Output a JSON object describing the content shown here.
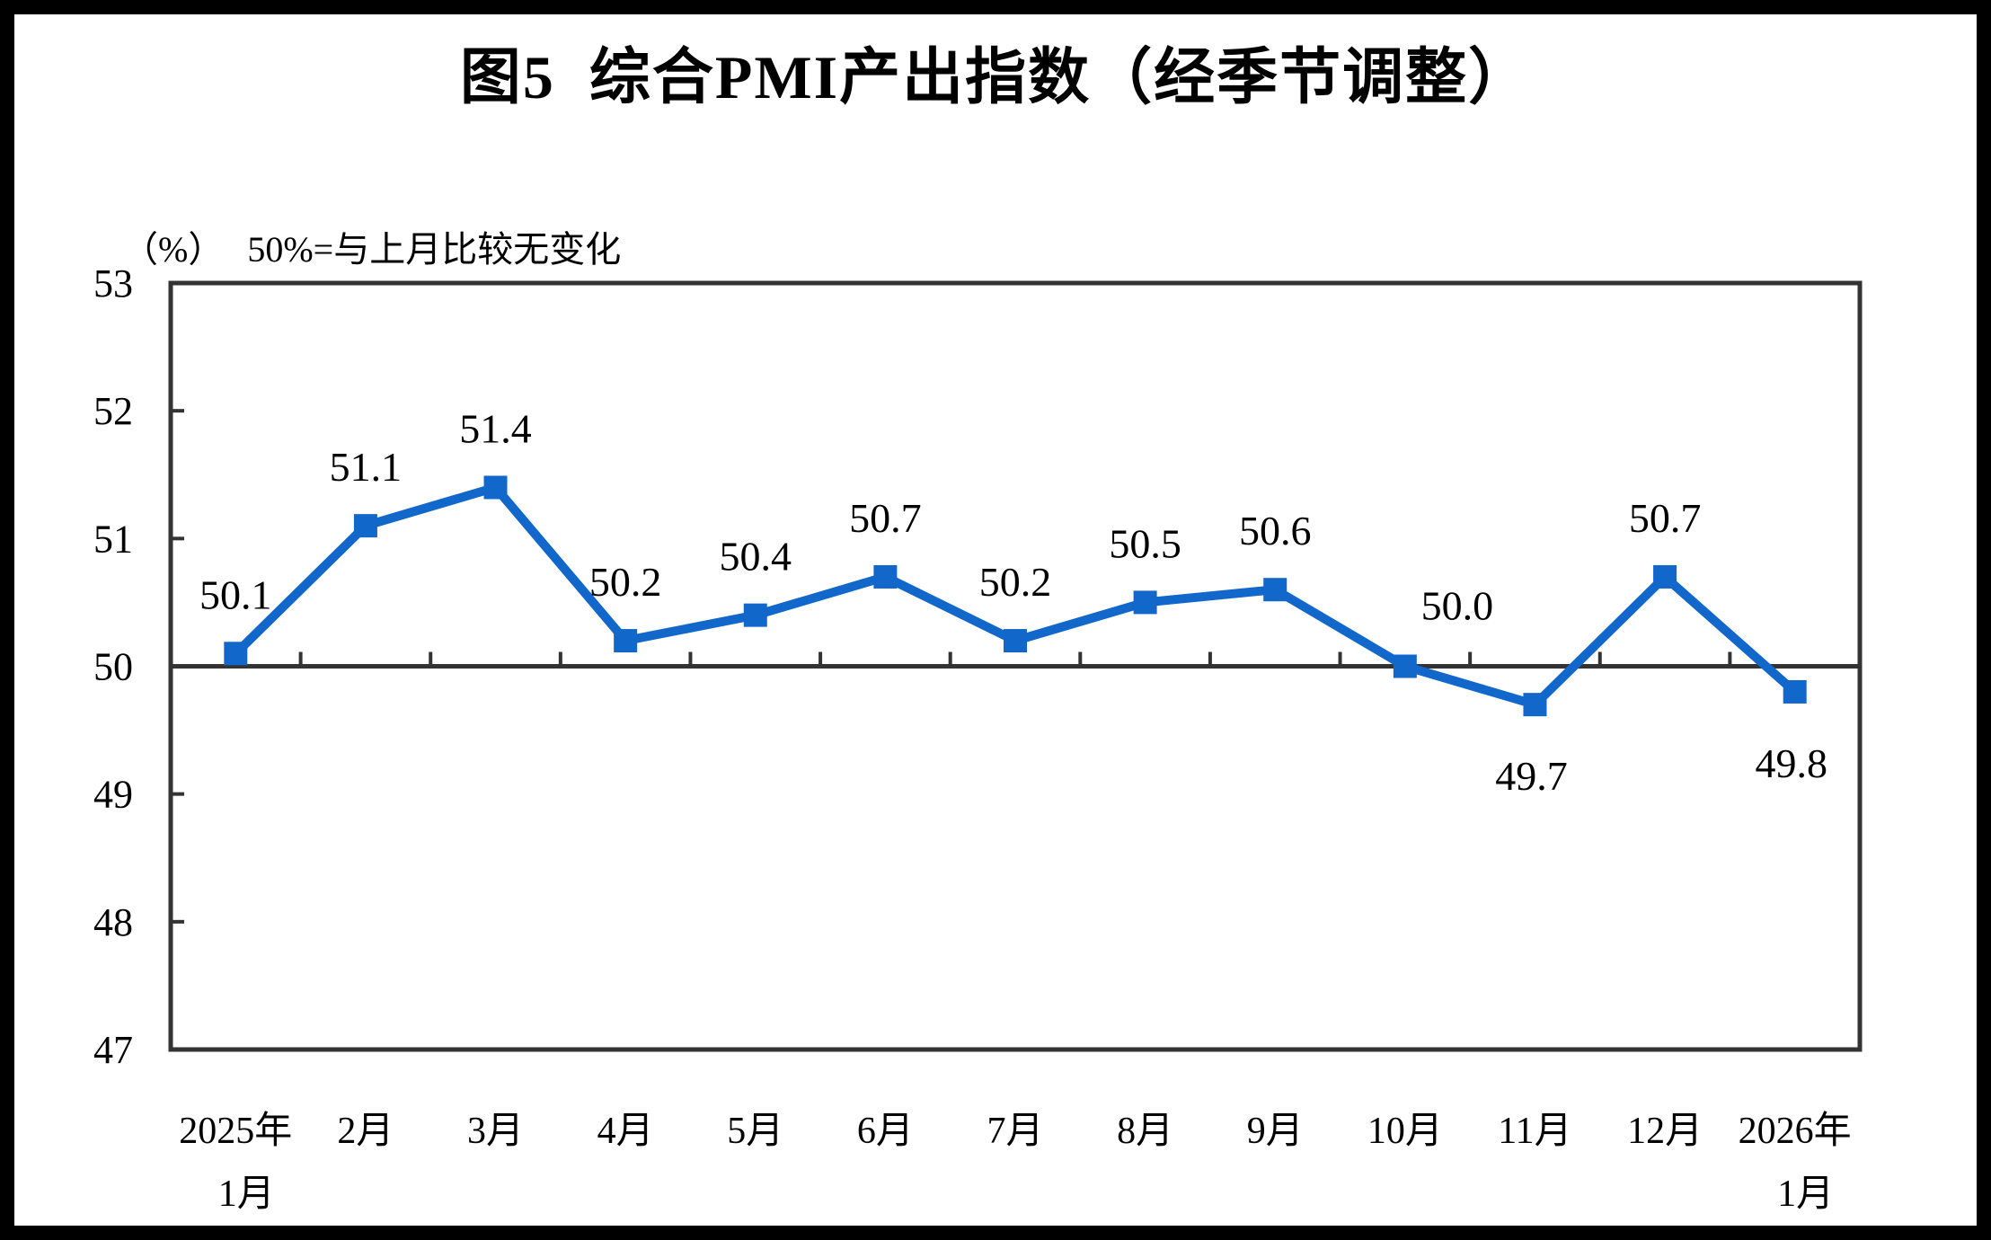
{
  "chart_data": {
    "type": "line",
    "title": "图5  综合PMI产出指数（经季节调整）",
    "unit_label": "（%）",
    "subtitle": "50%=与上月比较无变化",
    "categories": [
      "2025年\n1月",
      "2月",
      "3月",
      "4月",
      "5月",
      "6月",
      "7月",
      "8月",
      "9月",
      "10月",
      "11月",
      "12月",
      "2026年\n1月"
    ],
    "series": [
      {
        "name": "综合PMI产出指数",
        "values": [
          50.1,
          51.1,
          51.4,
          50.2,
          50.4,
          50.7,
          50.2,
          50.5,
          50.6,
          50.0,
          49.7,
          50.7,
          49.8
        ]
      }
    ],
    "data_labels": [
      "50.1",
      "51.1",
      "51.4",
      "50.2",
      "50.4",
      "50.7",
      "50.2",
      "50.5",
      "50.6",
      "50.0",
      "49.7",
      "50.7",
      "49.8"
    ],
    "label_positions": [
      "above",
      "above",
      "above",
      "above",
      "above",
      "above",
      "above",
      "above",
      "above",
      "above-right",
      "below",
      "above",
      "below"
    ],
    "yticks": [
      53,
      52,
      51,
      50,
      49,
      48,
      47
    ],
    "ylim": [
      47,
      53
    ],
    "reference_line": 50,
    "grid": "off",
    "legend_position": "none",
    "marker": "square",
    "line_color": "#1267CB",
    "axis_color": "#333333",
    "text_color": "#000000",
    "background_color": "#ffffff"
  }
}
